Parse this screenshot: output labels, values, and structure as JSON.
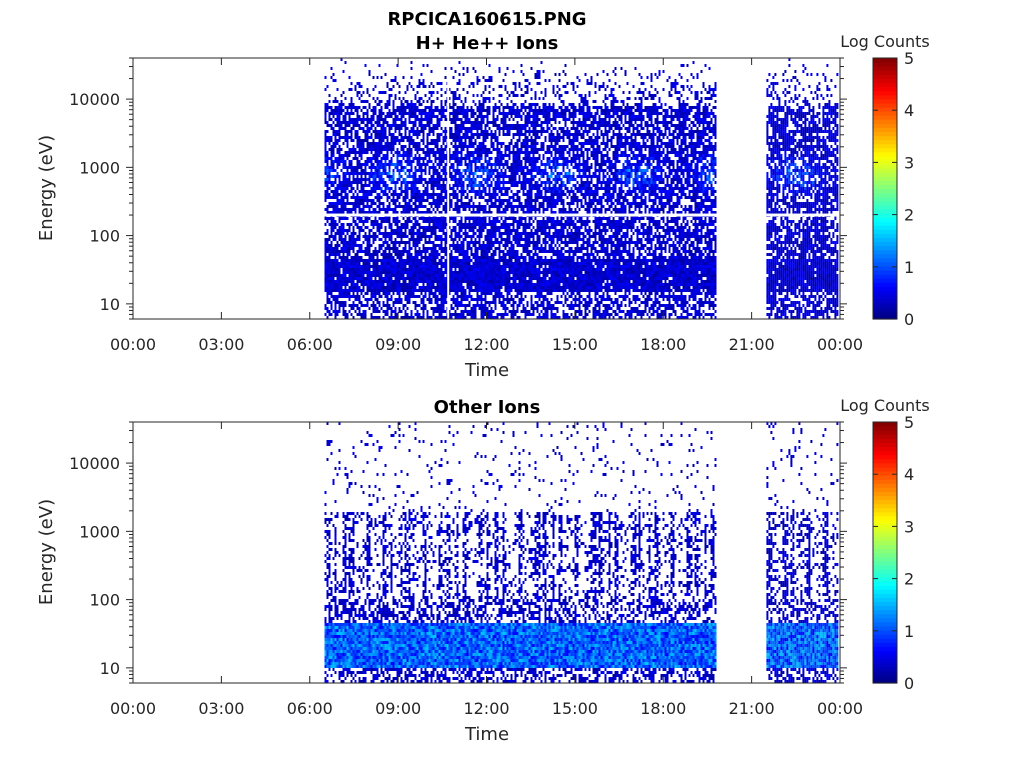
{
  "figure": {
    "title": "RPCICA160615.PNG"
  },
  "chart_data": [
    {
      "type": "heatmap",
      "title": "H+ He++ Ions",
      "xlabel": "Time",
      "ylabel": "Energy (eV)",
      "x_ticks": [
        "00:00",
        "03:00",
        "06:00",
        "09:00",
        "12:00",
        "15:00",
        "18:00",
        "21:00",
        "00:00"
      ],
      "x_range_hours": [
        0,
        24
      ],
      "y_scale": "log",
      "y_ticks": [
        "10",
        "100",
        "1000",
        "10000"
      ],
      "y_range_eV": [
        6,
        40000
      ],
      "colorbar": {
        "label": "Log Counts",
        "ticks": [
          "0",
          "1",
          "2",
          "3",
          "4",
          "5"
        ],
        "range": [
          0,
          5
        ],
        "colormap": "jet"
      },
      "data_coverage_hours": [
        [
          6.5,
          19.8
        ],
        [
          21.5,
          23.9
        ]
      ],
      "gaps_hours": [
        [
          0,
          6.5
        ],
        [
          19.8,
          21.5
        ]
      ],
      "notable_features": {
        "peak_energy_eV": 800,
        "peak_log_counts": 1.6,
        "white_line_energy_eV": 200,
        "white_line_time_h": 10.7
      }
    },
    {
      "type": "heatmap",
      "title": "Other Ions",
      "xlabel": "Time",
      "ylabel": "Energy (eV)",
      "x_ticks": [
        "00:00",
        "03:00",
        "06:00",
        "09:00",
        "12:00",
        "15:00",
        "18:00",
        "21:00",
        "00:00"
      ],
      "x_range_hours": [
        0,
        24
      ],
      "y_scale": "log",
      "y_ticks": [
        "10",
        "100",
        "1000",
        "10000"
      ],
      "y_range_eV": [
        6,
        40000
      ],
      "colorbar": {
        "label": "Log Counts",
        "ticks": [
          "0",
          "1",
          "2",
          "3",
          "4",
          "5"
        ],
        "range": [
          0,
          5
        ],
        "colormap": "jet"
      },
      "data_coverage_hours": [
        [
          6.5,
          19.8
        ],
        [
          21.5,
          23.9
        ]
      ],
      "gaps_hours": [
        [
          0,
          6.5
        ],
        [
          19.8,
          21.5
        ]
      ],
      "notable_features": {
        "band_energy_eV": [
          10,
          45
        ],
        "band_log_counts": 1.4
      }
    }
  ]
}
